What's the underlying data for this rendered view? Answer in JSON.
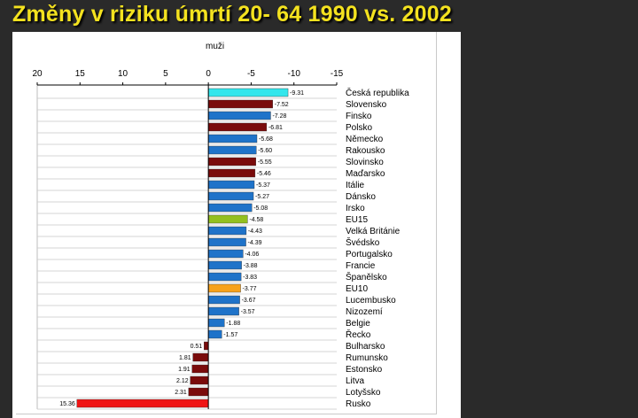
{
  "slide": {
    "title": "Změny v riziku úmrtí 20- 64 1990 vs. 2002"
  },
  "colors": {
    "slide_background": "#2a2a2a",
    "title": "#f4e21f",
    "cz": "#33e6ec",
    "dark_red": "#7a0b0b",
    "blue": "#1f73c9",
    "eu15": "#93c01f",
    "eu10": "#f7a21b",
    "red": "#f01515"
  },
  "chart_data": {
    "type": "bar",
    "orientation": "horizontal",
    "title": "muži",
    "xlabel": "",
    "ylabel": "",
    "xlim": [
      20,
      -15
    ],
    "x_axis_reversed": true,
    "x_ticks": [
      "20",
      "15",
      "10",
      "5",
      "0",
      "-5",
      "-10",
      "-15"
    ],
    "x_tick_values": [
      20,
      15,
      10,
      5,
      0,
      -5,
      -10,
      -15
    ],
    "grid": "horizontal row lines",
    "category_labels_position": "right",
    "categories": [
      "Česká republika",
      "Slovensko",
      "Finsko",
      "Polsko",
      "Německo",
      "Rakousko",
      "Slovinsko",
      "Maďarsko",
      "Itálie",
      "Dánsko",
      "Irsko",
      "EU15",
      "Velká Británie",
      "Švédsko",
      "Portugalsko",
      "Francie",
      "Španělsko",
      "EU10",
      "Lucembusko",
      "Nizozemí",
      "Belgie",
      "Řecko",
      "Bulharsko",
      "Rumunsko",
      "Estonsko",
      "Litva",
      "Lotyšsko",
      "Rusko"
    ],
    "values": [
      -9.31,
      -7.52,
      -7.28,
      -6.81,
      -5.68,
      -5.6,
      -5.55,
      -5.46,
      -5.37,
      -5.27,
      -5.08,
      -4.58,
      -4.43,
      -4.39,
      -4.06,
      -3.88,
      -3.83,
      -3.77,
      -3.67,
      -3.57,
      -1.88,
      -1.57,
      0.51,
      1.81,
      1.91,
      2.12,
      2.31,
      15.36
    ],
    "value_labels": [
      "-9.31",
      "-7.52",
      "-7.28",
      "-6.81",
      "-5.68",
      "-5.60",
      "-5.55",
      "-5.46",
      "-5.37",
      "-5.27",
      "-5.08",
      "-4.58",
      "-4.43",
      "-4.39",
      "-4.06",
      "-3.88",
      "-3.83",
      "-3.77",
      "-3.67",
      "-3.57",
      "-1.88",
      "-1.57",
      "0.51",
      "1.81",
      "1.91",
      "2.12",
      "2.31",
      "15.36"
    ],
    "bar_colors": [
      "cz",
      "dark_red",
      "blue",
      "dark_red",
      "blue",
      "blue",
      "dark_red",
      "dark_red",
      "blue",
      "blue",
      "blue",
      "eu15",
      "blue",
      "blue",
      "blue",
      "blue",
      "blue",
      "eu10",
      "blue",
      "blue",
      "blue",
      "blue",
      "dark_red",
      "dark_red",
      "dark_red",
      "dark_red",
      "dark_red",
      "red"
    ]
  }
}
